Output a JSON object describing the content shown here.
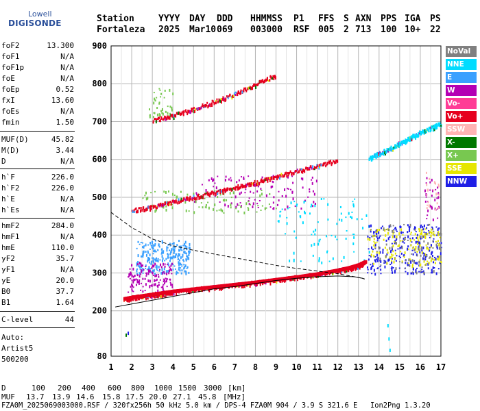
{
  "logo": {
    "company": "Lowell",
    "product": "DIGISONDE"
  },
  "header": {
    "labels": [
      "Station",
      "YYYY",
      "DAY",
      "DDD",
      "HHMMSS",
      "P1",
      "FFS",
      "S",
      "AXN",
      "PPS",
      "IGA",
      "PS"
    ],
    "values": [
      "Fortaleza",
      "2025",
      "Mar10",
      "069",
      "003000",
      "RSF",
      "005",
      "2",
      "713",
      "100",
      "10+",
      "22"
    ]
  },
  "params": [
    {
      "label": "foF2",
      "value": "13.300"
    },
    {
      "label": "foF1",
      "value": "N/A"
    },
    {
      "label": "foF1p",
      "value": "N/A"
    },
    {
      "label": "foE",
      "value": "N/A"
    },
    {
      "label": "foEp",
      "value": "0.52"
    },
    {
      "label": "fxI",
      "value": "13.60"
    },
    {
      "label": "foEs",
      "value": "N/A"
    },
    {
      "label": "fmin",
      "value": "1.50"
    },
    {
      "label": "MUF(D)",
      "value": "45.82"
    },
    {
      "label": "M(D)",
      "value": "3.44"
    },
    {
      "label": "D",
      "value": "N/A"
    },
    {
      "label": "h`F",
      "value": "226.0"
    },
    {
      "label": "h`F2",
      "value": "226.0"
    },
    {
      "label": "h`E",
      "value": "N/A"
    },
    {
      "label": "h`Es",
      "value": "N/A"
    },
    {
      "label": "hmF2",
      "value": "284.0"
    },
    {
      "label": "hmF1",
      "value": "N/A"
    },
    {
      "label": "hmE",
      "value": "110.0"
    },
    {
      "label": "yF2",
      "value": "35.7"
    },
    {
      "label": "yF1",
      "value": "N/A"
    },
    {
      "label": "yE",
      "value": "20.0"
    },
    {
      "label": "B0",
      "value": "37.7"
    },
    {
      "label": "B1",
      "value": "1.64"
    },
    {
      "label": "C-level",
      "value": "44"
    }
  ],
  "auto": {
    "line1": "Auto:",
    "line2": "Artist5",
    "line3": "500200"
  },
  "legend": [
    {
      "name": "NoVal",
      "color": "#808080"
    },
    {
      "name": "NNE",
      "color": "#00dcff"
    },
    {
      "name": "E",
      "color": "#3aa0ff"
    },
    {
      "name": "W",
      "color": "#b400b4"
    },
    {
      "name": "Vo-",
      "color": "#ff3c96"
    },
    {
      "name": "Vo+",
      "color": "#e6001e"
    },
    {
      "name": "SSW",
      "color": "#ffb4b4"
    },
    {
      "name": "X-",
      "color": "#007800"
    },
    {
      "name": "X+",
      "color": "#78c850"
    },
    {
      "name": "SSE",
      "color": "#e6e600"
    },
    {
      "name": "NNW",
      "color": "#1e1ee6"
    }
  ],
  "footer": {
    "row1_label": "D",
    "row1_values": [
      "100",
      "200",
      "400",
      "600",
      "800",
      "1000",
      "1500",
      "3000"
    ],
    "row1_unit": "[km]",
    "row2_label": "MUF",
    "row2_values": [
      "13.7",
      "13.9",
      "14.6",
      "15.8",
      "17.5",
      "20.0",
      "27.1",
      "45.8"
    ],
    "row2_unit": "[MHz]",
    "info": "FZA0M_2025069003000.RSF / 320fx256h 50 kHz 5.0 km / DPS-4 FZA0M 904 / 3.9 S 321.6 E   Ion2Png 1.3.20"
  },
  "chart_data": {
    "type": "scatter",
    "xlim": [
      1,
      17
    ],
    "ylim": [
      80,
      900
    ],
    "x_ticks": [
      1,
      2,
      3,
      4,
      5,
      6,
      7,
      8,
      9,
      10,
      11,
      12,
      13,
      14,
      15,
      16,
      17
    ],
    "y_ticks": [
      80,
      200,
      300,
      400,
      500,
      600,
      700,
      800,
      900
    ],
    "grid": true,
    "legend_position": "right",
    "traces": [
      {
        "name": "F2 ordinary trace",
        "color": "#e6001e",
        "x": [
          1.6,
          2.0,
          2.5,
          3.0,
          3.5,
          4.0,
          5.0,
          6.0,
          7.0,
          8.0,
          9.0,
          10.0,
          11.0,
          12.0,
          12.5,
          13.0,
          13.3
        ],
        "y": [
          232,
          236,
          240,
          244,
          248,
          252,
          258,
          264,
          270,
          276,
          283,
          290,
          298,
          308,
          314,
          322,
          330
        ]
      },
      {
        "name": "second-hop trace",
        "color": "#e6001e",
        "x": [
          2.0,
          3.0,
          4.0,
          5.0,
          6.0,
          7.0,
          8.0,
          9.0,
          10.0,
          11.0,
          12.0
        ],
        "y": [
          468,
          476,
          490,
          503,
          515,
          528,
          542,
          556,
          572,
          585,
          600
        ]
      },
      {
        "name": "third-hop trace",
        "color": "#e6001e",
        "x": [
          3.0,
          4.0,
          5.0,
          6.0,
          7.0,
          8.0,
          9.0
        ],
        "y": [
          705,
          718,
          735,
          755,
          775,
          800,
          825
        ]
      },
      {
        "name": "NNE oblique trace",
        "color": "#00dcff",
        "x": [
          13.5,
          14.0,
          14.5,
          15.0,
          15.5,
          16.0,
          16.5,
          17.0
        ],
        "y": [
          605,
          618,
          630,
          645,
          660,
          673,
          685,
          697
        ]
      }
    ],
    "profile_dashed": {
      "x": [
        1.0,
        1.5,
        2.0,
        3.0,
        4.0,
        5.0,
        6.0,
        7.0,
        8.0,
        9.0,
        10.0,
        11.0,
        12.0,
        12.6,
        13.0,
        13.3
      ],
      "y": [
        460,
        440,
        420,
        390,
        372,
        360,
        350,
        340,
        330,
        320,
        312,
        305,
        298,
        292,
        288,
        284
      ]
    },
    "profile_solid": {
      "x": [
        1.2,
        2.0,
        3.0,
        4.0,
        5.0,
        6.0,
        7.0,
        8.0,
        9.0,
        10.0,
        11.0,
        12.0,
        12.8,
        13.2,
        13.3
      ],
      "y": [
        210,
        218,
        228,
        238,
        248,
        258,
        264,
        272,
        280,
        286,
        290,
        292,
        290,
        286,
        284
      ]
    },
    "clusters": [
      {
        "color": "#3aa0ff",
        "x": [
          2.2,
          4.8
        ],
        "y": [
          300,
          388
        ],
        "n": 260
      },
      {
        "color": "#b400b4",
        "x": [
          1.8,
          4.0
        ],
        "y": [
          250,
          330
        ],
        "n": 140
      },
      {
        "color": "#00dcff",
        "x": [
          9.0,
          13.5
        ],
        "y": [
          330,
          500
        ],
        "n": 90
      },
      {
        "color": "#1e1ee6",
        "x": [
          13.4,
          17.0
        ],
        "y": [
          300,
          430
        ],
        "n": 260
      },
      {
        "color": "#e6e600",
        "x": [
          13.4,
          17.0
        ],
        "y": [
          320,
          420
        ],
        "n": 140
      },
      {
        "color": "#b400b4",
        "x": [
          5.0,
          11.0
        ],
        "y": [
          470,
          560
        ],
        "n": 110
      },
      {
        "color": "#78c850",
        "x": [
          2.5,
          9.0
        ],
        "y": [
          460,
          520
        ],
        "n": 90
      },
      {
        "color": "#b400b4",
        "x": [
          16.2,
          16.9
        ],
        "y": [
          440,
          560
        ],
        "n": 30
      },
      {
        "color": "#ffb4b4",
        "x": [
          16.2,
          16.9
        ],
        "y": [
          460,
          570
        ],
        "n": 20
      },
      {
        "color": "#808080",
        "x": [
          13.8,
          17.0
        ],
        "y": [
          300,
          430
        ],
        "n": 70
      },
      {
        "color": "#78c850",
        "x": [
          2.8,
          4.0
        ],
        "y": [
          710,
          790
        ],
        "n": 40
      }
    ],
    "isolated_points": [
      {
        "color": "#00dcff",
        "x": 14.4,
        "y": 165
      },
      {
        "color": "#00dcff",
        "x": 14.45,
        "y": 130
      },
      {
        "color": "#00dcff",
        "x": 14.5,
        "y": 100
      },
      {
        "color": "#007800",
        "x": 1.7,
        "y": 140
      },
      {
        "color": "#1e1ee6",
        "x": 1.8,
        "y": 145
      }
    ]
  }
}
